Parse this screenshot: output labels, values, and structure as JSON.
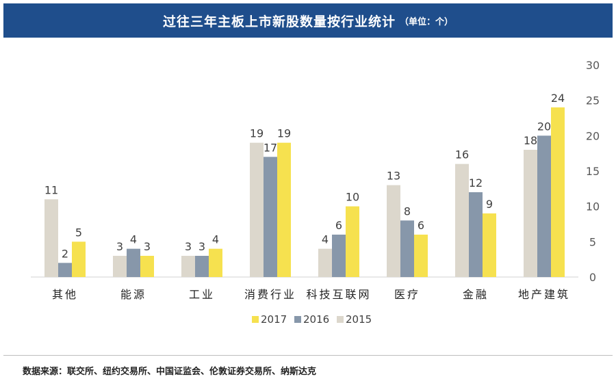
{
  "header": {
    "title": "过往三年主板上市新股数量按行业统计",
    "subtitle": "（单位：个）"
  },
  "footer": {
    "source": "数据来源：联交所、纽约交易所、中国证监会、伦敦证券交易所、纳斯达克"
  },
  "chart_data": {
    "type": "bar",
    "categories": [
      "其他",
      "能源",
      "工业",
      "消费行业",
      "科技互联网",
      "医疗",
      "金融",
      "地产建筑"
    ],
    "series": [
      {
        "name": "2015",
        "color": "#dcd7cc",
        "values": [
          11,
          3,
          3,
          19,
          4,
          13,
          16,
          18
        ]
      },
      {
        "name": "2016",
        "color": "#8797aa",
        "values": [
          2,
          4,
          3,
          17,
          6,
          8,
          12,
          20
        ]
      },
      {
        "name": "2017",
        "color": "#f6e14f",
        "values": [
          5,
          3,
          4,
          19,
          10,
          6,
          9,
          24
        ]
      }
    ],
    "legend_order": [
      "2017",
      "2016",
      "2015"
    ],
    "legend_position": "bottom",
    "ylim": [
      0,
      30
    ],
    "yticks": [
      0,
      5,
      10,
      15,
      20,
      25,
      30
    ],
    "yaxis_side": "right",
    "grid": false,
    "title": "",
    "xlabel": "",
    "ylabel": ""
  }
}
